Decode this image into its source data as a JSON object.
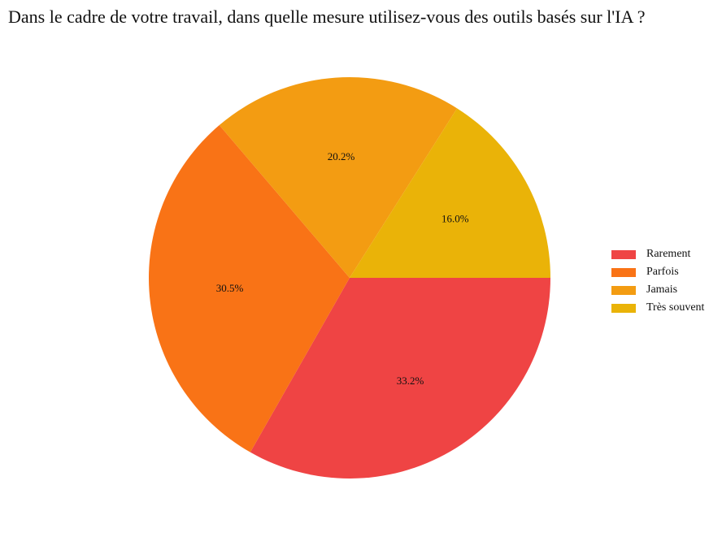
{
  "chart_data": {
    "type": "pie",
    "title": "Dans le cadre de votre travail, dans quelle mesure utilisez-vous des outils basés sur l'IA ?",
    "slices": [
      {
        "label": "Rarement",
        "value": 33.2,
        "display": "33.2%",
        "color": "#ef4444"
      },
      {
        "label": "Parfois",
        "value": 30.5,
        "display": "30.5%",
        "color": "#f97316"
      },
      {
        "label": "Jamais",
        "value": 20.2,
        "display": "20.2%",
        "color": "#f39c12"
      },
      {
        "label": "Très souvent",
        "value": 16.0,
        "display": "16.0%",
        "color": "#eab308"
      }
    ],
    "legend_position": "right",
    "start": "right",
    "direction": "clockwise"
  }
}
